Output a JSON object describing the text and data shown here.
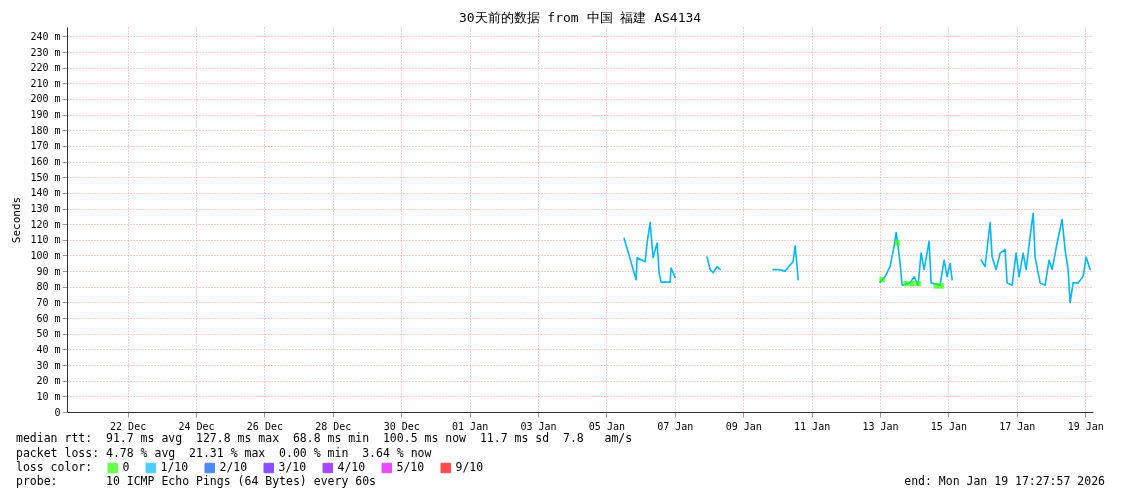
{
  "chart_data": {
    "type": "line",
    "title": "30天前的数据 from 中国 福建 AS4134",
    "ylabel": "Seconds",
    "legend_title": "loss color:",
    "legend": "bottom left",
    "grid": true,
    "xlim": [
      "2025-12-20T17:28",
      "2026-01-19T17:28"
    ],
    "xticks": [
      {
        "value": "2025-12-22T12:00",
        "label": "22 Dec"
      },
      {
        "value": "2025-12-24T12:00",
        "label": "24 Dec"
      },
      {
        "value": "2025-12-26T12:00",
        "label": "26 Dec"
      },
      {
        "value": "2025-12-28T12:00",
        "label": "28 Dec"
      },
      {
        "value": "2025-12-30T12:00",
        "label": "30 Dec"
      },
      {
        "value": "2026-01-01T12:00",
        "label": "01 Jan"
      },
      {
        "value": "2026-01-03T12:00",
        "label": "03 Jan"
      },
      {
        "value": "2026-01-05T12:00",
        "label": "05 Jan"
      },
      {
        "value": "2026-01-07T12:00",
        "label": "07 Jan"
      },
      {
        "value": "2026-01-09T12:00",
        "label": "09 Jan"
      },
      {
        "value": "2026-01-11T12:00",
        "label": "11 Jan"
      },
      {
        "value": "2026-01-13T12:00",
        "label": "13 Jan"
      },
      {
        "value": "2026-01-15T12:00",
        "label": "15 Jan"
      },
      {
        "value": "2026-01-17T12:00",
        "label": "17 Jan"
      },
      {
        "value": "2026-01-19T12:00",
        "label": "19 Jan"
      }
    ],
    "ylim": [
      0,
      246
    ],
    "yticks": [
      0,
      {
        "value": 10,
        "label": "10 m"
      },
      {
        "value": 20,
        "label": "20 m"
      },
      {
        "value": 30,
        "label": "30 m"
      },
      {
        "value": 40,
        "label": "40 m"
      },
      {
        "value": 50,
        "label": "50 m"
      },
      {
        "value": 60,
        "label": "60 m"
      },
      {
        "value": 70,
        "label": "70 m"
      },
      {
        "value": 80,
        "label": "80 m"
      },
      {
        "value": 90,
        "label": "90 m"
      },
      {
        "value": 100,
        "label": "100 m"
      },
      {
        "value": 110,
        "label": "110 m"
      },
      {
        "value": 120,
        "label": "120 m"
      },
      {
        "value": 130,
        "label": "130 m"
      },
      {
        "value": 140,
        "label": "140 m"
      },
      {
        "value": 150,
        "label": "150 m"
      },
      {
        "value": 160,
        "label": "160 m"
      },
      {
        "value": 170,
        "label": "170 m"
      },
      {
        "value": 180,
        "label": "180 m"
      },
      {
        "value": 190,
        "label": "190 m"
      },
      {
        "value": 200,
        "label": "200 m"
      },
      {
        "value": 210,
        "label": "210 m"
      },
      {
        "value": 220,
        "label": "220 m"
      },
      {
        "value": 230,
        "label": "230 m"
      },
      {
        "value": 240,
        "label": "240 m"
      }
    ],
    "series": [
      {
        "name": "0",
        "color": "#26ff00",
        "type": "scatter",
        "marker": "square",
        "x": [
          "2026-01-13T13:28",
          "2026-01-14T00:00",
          "2026-01-14T06:19",
          "2026-01-14T10:32",
          "2026-01-14T14:44",
          "2026-01-15T03:22",
          "2026-01-15T06:53"
        ],
        "values": [
          84.5,
          108,
          82,
          82,
          82,
          80.6,
          80.6
        ]
      },
      {
        "name": "1/10",
        "color": "#00b8ff",
        "x": [
          "2026-01-06T00:25",
          "2026-01-06T08:50",
          "2026-01-06T09:33",
          "2026-01-06T15:10",
          "2026-01-06T16:34",
          "2026-01-06T18:40",
          "2026-01-06T20:46",
          "2026-01-06T23:35",
          "2026-01-07T01:00",
          "2026-01-07T02:24",
          "2026-01-07T08:42",
          "2026-01-07T09:24",
          "2026-01-07T12:13",
          "2026-01-08T00:00",
          "2026-01-08T10:40",
          "2026-01-08T12:46",
          "2026-01-08T14:53",
          "2026-01-08T17:41",
          "2026-01-08T19:47",
          "2026-01-09T12:00",
          "2026-01-10T09:00",
          "2026-01-10T12:30",
          "2026-01-10T17:25",
          "2026-01-10T20:55",
          "2026-01-10T23:00",
          "2026-01-11T00:26",
          "2026-01-11T01:50",
          "2026-01-11T02:30",
          "2026-01-12T00:00",
          "2026-01-13T12:04",
          "2026-01-13T15:35",
          "2026-01-13T19:05",
          "2026-01-13T21:54",
          "2026-01-13T23:18",
          "2026-01-14T00:42",
          "2026-01-14T02:06",
          "2026-01-14T03:30",
          "2026-01-14T09:07",
          "2026-01-14T11:56",
          "2026-01-14T14:44",
          "2026-01-14T16:50",
          "2026-01-14T18:57",
          "2026-01-14T22:27",
          "2026-01-14T23:51",
          "2026-01-15T06:10",
          "2026-01-15T08:59",
          "2026-01-15T11:05",
          "2026-01-15T13:12",
          "2026-01-15T14:36",
          "2026-01-15T20:00",
          "2026-01-16T10:57",
          "2026-01-16T13:45",
          "2026-01-16T17:16",
          "2026-01-16T18:40",
          "2026-01-16T21:29",
          "2026-01-17T00:17",
          "2026-01-17T03:47",
          "2026-01-17T05:12",
          "2026-01-17T08:42",
          "2026-01-17T11:30",
          "2026-01-17T13:37",
          "2026-01-17T16:25",
          "2026-01-17T18:32",
          "2026-01-17T21:20",
          "2026-01-17T23:27",
          "2026-01-18T00:51",
          "2026-01-18T04:21",
          "2026-01-18T07:51",
          "2026-01-18T10:40",
          "2026-01-18T12:46",
          "2026-01-18T16:17",
          "2026-01-18T19:47",
          "2026-01-18T21:53",
          "2026-01-19T00:00",
          "2026-01-19T01:24",
          "2026-01-19T03:30",
          "2026-01-19T07:00",
          "2026-01-19T10:30",
          "2026-01-19T12:38",
          "2026-01-19T15:26"
        ],
        "values": [
          111,
          84.5,
          98.6,
          96,
          108,
          121,
          98.6,
          108,
          89,
          83,
          83,
          92,
          86,
          null,
          99,
          91,
          89,
          93,
          91,
          null,
          91,
          91,
          90,
          94,
          96,
          106,
          93,
          84.5,
          null,
          83,
          86.5,
          93,
          106,
          114.6,
          106,
          95,
          81,
          82.5,
          86.5,
          81,
          101.5,
          91,
          109,
          82.5,
          81,
          97,
          86.5,
          95,
          84.5,
          null,
          97,
          93,
          121,
          99,
          91,
          101.5,
          103.7,
          82.5,
          81,
          101.5,
          86.5,
          101.5,
          91,
          112,
          127,
          99,
          82.5,
          81,
          97,
          91,
          108,
          123,
          103.7,
          91,
          69.8,
          82.5,
          82.5,
          86.5,
          99,
          91
        ]
      },
      {
        "name": "2/10",
        "color": "#0059ff"
      },
      {
        "name": "3/10",
        "color": "#5e00ff"
      },
      {
        "name": "4/10",
        "color": "#7e00ff"
      },
      {
        "name": "5/10",
        "color": "#dd00ff"
      },
      {
        "name": "9/10",
        "color": "#ff0000"
      }
    ],
    "annotations": [
      "median rtt:  91.7 ms avg  127.8 ms max  68.8 ms min  100.5 ms now  11.7 ms sd  7.8   am/s",
      "packet loss: 4.78 % avg  21.31 % max  0.00 % min  3.64 % now",
      "probe:       10 ICMP Echo Pings (64 Bytes) every 60s",
      "end: Mon Jan 19 17:27:57 2026"
    ]
  }
}
